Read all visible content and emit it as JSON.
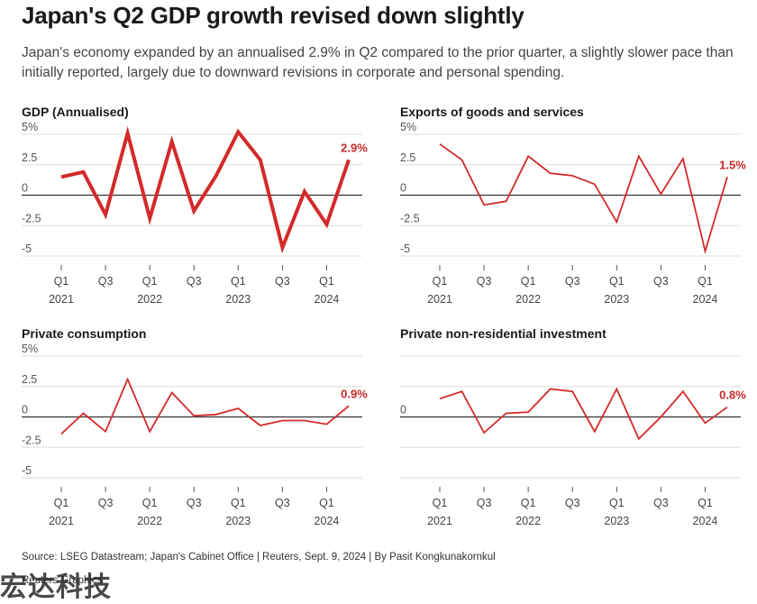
{
  "headline": "Japan's Q2 GDP growth revised down slightly",
  "subtitle": "Japan's economy expanded by an annualised 2.9% in Q2 compared to the prior quarter, a slightly slower pace than initially reported, largely due to downward revisions in corporate and personal spending.",
  "footer": {
    "source": "Source: LSEG Datastream; Japan's Cabinet Office | Reuters, Sept. 9, 2024 | By Pasit Kongkunakornkul",
    "credit": "Reuters Graphics"
  },
  "watermark": "宏达科技",
  "colors": {
    "line": "#d42a2a",
    "label": "#c8282a",
    "grid": "#dddddd",
    "zero": "#333333"
  },
  "chart_data": [
    {
      "type": "line",
      "title": "GDP (Annualised)",
      "ylim": [
        -5,
        5
      ],
      "yticks": [
        "5%",
        "2.5",
        "0",
        "-2.5",
        "-5"
      ],
      "x": [
        "Q1 2021",
        "Q2 2021",
        "Q3 2021",
        "Q4 2021",
        "Q1 2022",
        "Q2 2022",
        "Q3 2022",
        "Q4 2022",
        "Q1 2023",
        "Q2 2023",
        "Q3 2023",
        "Q4 2023",
        "Q1 2024",
        "Q2 2024"
      ],
      "xtick_labels": [
        {
          "q": "Q1",
          "y": "2021"
        },
        {
          "q": "Q3",
          "y": ""
        },
        {
          "q": "Q1",
          "y": "2022"
        },
        {
          "q": "Q3",
          "y": ""
        },
        {
          "q": "Q1",
          "y": "2023"
        },
        {
          "q": "Q3",
          "y": ""
        },
        {
          "q": "Q1",
          "y": "2024"
        }
      ],
      "values": [
        1.5,
        1.9,
        -1.6,
        5.1,
        -1.9,
        4.4,
        -1.3,
        1.6,
        5.2,
        2.9,
        -4.3,
        0.3,
        -2.4,
        2.9
      ],
      "bold": true,
      "annotation": "2.9%"
    },
    {
      "type": "line",
      "title": "Exports of goods and services",
      "ylim": [
        -5,
        5
      ],
      "yticks": [
        "5%",
        "2.5",
        "0",
        "-2.5",
        "-5"
      ],
      "x": [
        "Q1 2021",
        "Q2 2021",
        "Q3 2021",
        "Q4 2021",
        "Q1 2022",
        "Q2 2022",
        "Q3 2022",
        "Q4 2022",
        "Q1 2023",
        "Q2 2023",
        "Q3 2023",
        "Q4 2023",
        "Q1 2024",
        "Q2 2024"
      ],
      "xtick_labels": [
        {
          "q": "Q1",
          "y": "2021"
        },
        {
          "q": "Q3",
          "y": ""
        },
        {
          "q": "Q1",
          "y": "2022"
        },
        {
          "q": "Q3",
          "y": ""
        },
        {
          "q": "Q1",
          "y": "2023"
        },
        {
          "q": "Q3",
          "y": ""
        },
        {
          "q": "Q1",
          "y": "2024"
        }
      ],
      "values": [
        4.2,
        2.9,
        -0.8,
        -0.5,
        3.2,
        1.8,
        1.6,
        0.9,
        -2.2,
        3.2,
        0.1,
        3.0,
        -4.6,
        1.5
      ],
      "bold": false,
      "annotation": "1.5%"
    },
    {
      "type": "line",
      "title": "Private consumption",
      "ylim": [
        -5,
        5
      ],
      "yticks": [
        "5%",
        "2.5",
        "0",
        "-2.5",
        "-5"
      ],
      "x": [
        "Q1 2021",
        "Q2 2021",
        "Q3 2021",
        "Q4 2021",
        "Q1 2022",
        "Q2 2022",
        "Q3 2022",
        "Q4 2022",
        "Q1 2023",
        "Q2 2023",
        "Q3 2023",
        "Q4 2023",
        "Q1 2024",
        "Q2 2024"
      ],
      "xtick_labels": [
        {
          "q": "Q1",
          "y": "2021"
        },
        {
          "q": "Q3",
          "y": ""
        },
        {
          "q": "Q1",
          "y": "2022"
        },
        {
          "q": "Q3",
          "y": ""
        },
        {
          "q": "Q1",
          "y": "2023"
        },
        {
          "q": "Q3",
          "y": ""
        },
        {
          "q": "Q1",
          "y": "2024"
        }
      ],
      "values": [
        -1.4,
        0.3,
        -1.2,
        3.1,
        -1.2,
        2.0,
        0.1,
        0.2,
        0.7,
        -0.7,
        -0.3,
        -0.3,
        -0.6,
        0.9
      ],
      "bold": false,
      "annotation": "0.9%"
    },
    {
      "type": "line",
      "title": "Private non-residential investment",
      "ylim": [
        -5,
        5
      ],
      "yticks": [
        "",
        "",
        "0",
        "",
        ""
      ],
      "x": [
        "Q1 2021",
        "Q2 2021",
        "Q3 2021",
        "Q4 2021",
        "Q1 2022",
        "Q2 2022",
        "Q3 2022",
        "Q4 2022",
        "Q1 2023",
        "Q2 2023",
        "Q3 2023",
        "Q4 2023",
        "Q1 2024",
        "Q2 2024"
      ],
      "xtick_labels": [
        {
          "q": "Q1",
          "y": "2021"
        },
        {
          "q": "Q3",
          "y": ""
        },
        {
          "q": "Q1",
          "y": "2022"
        },
        {
          "q": "Q3",
          "y": ""
        },
        {
          "q": "Q1",
          "y": "2023"
        },
        {
          "q": "Q3",
          "y": ""
        },
        {
          "q": "Q1",
          "y": "2024"
        }
      ],
      "values": [
        1.5,
        2.1,
        -1.3,
        0.3,
        0.4,
        2.3,
        2.1,
        -1.2,
        2.3,
        -1.8,
        0.0,
        2.1,
        -0.5,
        0.8
      ],
      "bold": false,
      "annotation": "0.8%"
    }
  ]
}
